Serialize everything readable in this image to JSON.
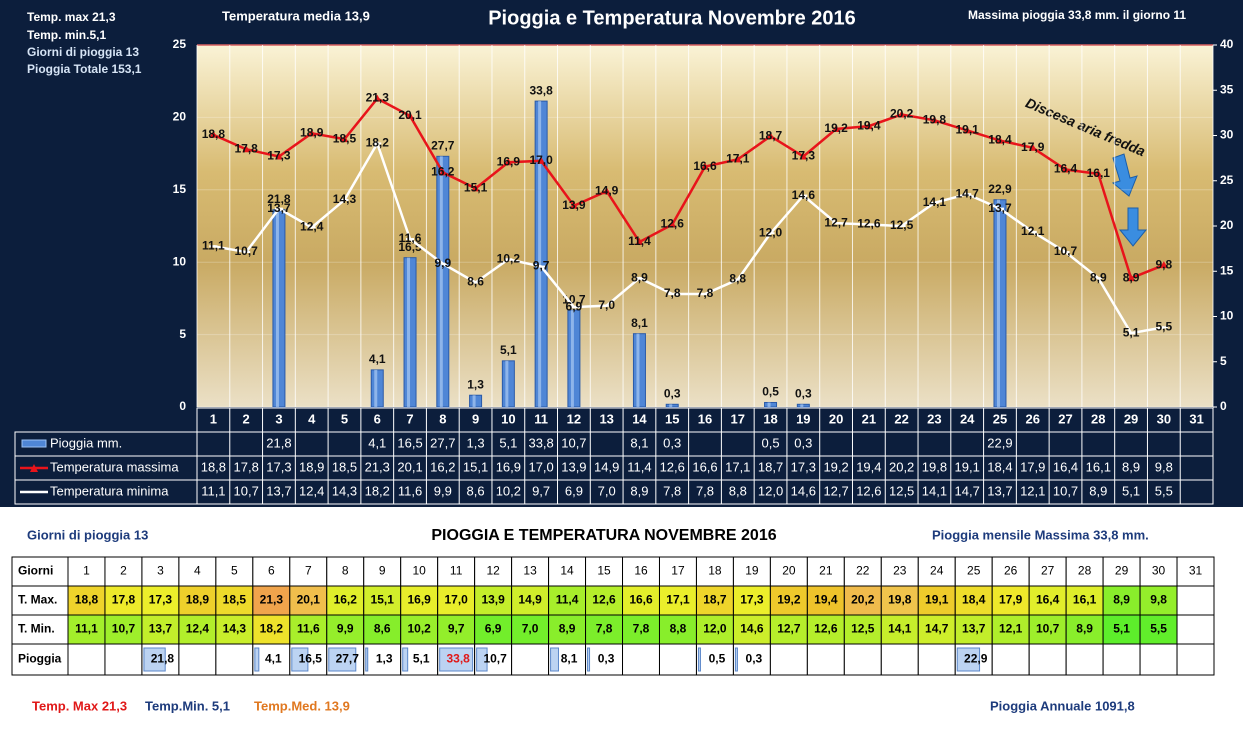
{
  "header": {
    "stats": [
      "Temp. max  21,3",
      "Temp.  min.5,1",
      "Giorni  di pioggia  13",
      "Pioggia Totale  153,1"
    ],
    "media": "Temperatura media  13,9",
    "massima": "Massima pioggia 33,8 mm. il giorno  11"
  },
  "chart_data": {
    "type": "combo",
    "title": "Pioggia e Temperatura Novembre 2016",
    "categories": [
      "1",
      "2",
      "3",
      "4",
      "5",
      "6",
      "7",
      "8",
      "9",
      "10",
      "11",
      "12",
      "13",
      "14",
      "15",
      "16",
      "17",
      "18",
      "19",
      "20",
      "21",
      "22",
      "23",
      "24",
      "25",
      "26",
      "27",
      "28",
      "29",
      "30",
      "31"
    ],
    "series": [
      {
        "name": "Pioggia mm.",
        "type": "bar",
        "axis": "y2",
        "color": "#4f86d6",
        "values": [
          null,
          null,
          21.8,
          null,
          null,
          4.1,
          16.5,
          27.7,
          1.3,
          5.1,
          33.8,
          10.7,
          null,
          8.1,
          0.3,
          null,
          null,
          0.5,
          0.3,
          null,
          null,
          null,
          null,
          null,
          22.9,
          null,
          null,
          null,
          null,
          null,
          null
        ],
        "value_labels": [
          null,
          null,
          "21,8",
          null,
          null,
          "4,1",
          "16,5",
          "27,7",
          "1,3",
          "5,1",
          "33,8",
          "10,7",
          null,
          "8,1",
          "0,3",
          null,
          null,
          "0,5",
          "0,3",
          null,
          null,
          null,
          null,
          null,
          "22,9",
          null,
          null,
          null,
          null,
          null,
          null
        ]
      },
      {
        "name": "Temperatura massima",
        "type": "line",
        "color": "#e8141b",
        "values": [
          18.8,
          17.8,
          17.3,
          18.9,
          18.5,
          21.3,
          20.1,
          16.2,
          15.1,
          16.9,
          17.0,
          13.9,
          14.9,
          11.4,
          12.6,
          16.6,
          17.1,
          18.7,
          17.3,
          19.2,
          19.4,
          20.2,
          19.8,
          19.1,
          18.4,
          17.9,
          16.4,
          16.1,
          8.9,
          9.8,
          null
        ],
        "value_labels": [
          "18,8",
          "17,8",
          "17,3",
          "18,9",
          "18,5",
          "21,3",
          "20,1",
          "16,2",
          "15,1",
          "16,9",
          "17,0",
          "13,9",
          "14,9",
          "11,4",
          "12,6",
          "16,6",
          "17,1",
          "18,7",
          "17,3",
          "19,2",
          "19,4",
          "20,2",
          "19,8",
          "19,1",
          "18,4",
          "17,9",
          "16,4",
          "16,1",
          "8,9",
          "9,8",
          null
        ]
      },
      {
        "name": "Temperatura minima",
        "type": "line",
        "color": "#ffffff",
        "values": [
          11.1,
          10.7,
          13.7,
          12.4,
          14.3,
          18.2,
          11.6,
          9.9,
          8.6,
          10.2,
          9.7,
          6.9,
          7.0,
          8.9,
          7.8,
          7.8,
          8.8,
          12.0,
          14.6,
          12.7,
          12.6,
          12.5,
          14.1,
          14.7,
          13.7,
          12.1,
          10.7,
          8.9,
          5.1,
          5.5,
          null
        ],
        "value_labels": [
          "11,1",
          "10,7",
          "13,7",
          "12,4",
          "14,3",
          "18,2",
          "11,6",
          "9,9",
          "8,6",
          "10,2",
          "9,7",
          "6,9",
          "7,0",
          "8,9",
          "7,8",
          "7,8",
          "8,8",
          "12,0",
          "14,6",
          "12,7",
          "12,6",
          "12,5",
          "14,1",
          "14,7",
          "13,7",
          "12,1",
          "10,7",
          "8,9",
          "5,1",
          "5,5",
          null
        ]
      }
    ],
    "ylim": [
      0,
      25
    ],
    "yticks": [
      0,
      5,
      10,
      15,
      20,
      25
    ],
    "y2lim": [
      0,
      40
    ],
    "y2ticks": [
      0,
      5,
      10,
      15,
      20,
      25,
      30,
      35,
      40
    ],
    "grid": true,
    "annotation": "Discesa aria fredda"
  },
  "table": {
    "title": "PIOGGIA E TEMPERATURA NOVEMBRE 2016",
    "left": "Giorni di pioggia  13",
    "right": "Pioggia mensile Massima  33,8   mm.",
    "row_labels": [
      "Giorni",
      "T. Max.",
      "T. Min.",
      "Pioggia"
    ]
  },
  "footer": {
    "tmax": "Temp. Max  21,3",
    "tmin": "Temp.Min.  5,1",
    "tmed": "Temp.Med. 13,9",
    "annual": "Pioggia Annuale  1091,8"
  }
}
